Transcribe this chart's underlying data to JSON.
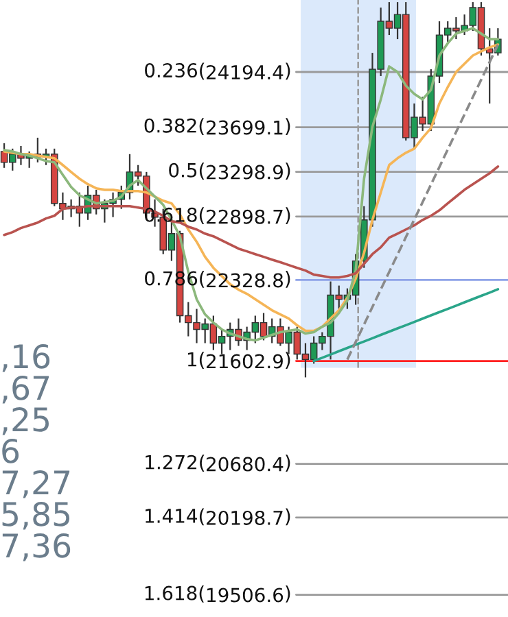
{
  "chart_data": {
    "type": "candlestick",
    "categories": [
      null,
      null,
      null,
      null,
      null,
      null,
      null,
      null,
      null,
      null,
      null,
      null,
      null,
      null,
      null,
      null,
      null,
      null,
      null,
      null,
      null,
      null,
      null,
      null,
      null,
      null,
      null,
      null,
      null,
      null,
      null,
      null,
      null,
      null,
      null,
      null,
      null,
      null,
      null,
      null,
      null,
      null,
      null,
      null,
      null,
      null,
      null,
      null,
      null,
      null,
      null,
      null,
      null,
      null,
      null,
      null,
      null,
      null,
      null,
      null
    ],
    "ylim": [
      19307,
      24840
    ],
    "yticks": [
      24194.4,
      23699.1,
      23298.9,
      22898.7,
      22328.8,
      21602.9,
      20680.4,
      20198.7,
      19506.6
    ],
    "tick_labels": "y",
    "ohlc": [
      [
        23482,
        23556,
        23335,
        23384
      ],
      [
        23384,
        23507,
        23310,
        23458
      ],
      [
        23458,
        23531,
        23360,
        23421
      ],
      [
        23421,
        23482,
        23335,
        23458
      ],
      [
        23458,
        23605,
        23384,
        23433
      ],
      [
        23433,
        23507,
        23360,
        23458
      ],
      [
        23458,
        23507,
        22991,
        23016
      ],
      [
        23016,
        23114,
        22868,
        22967
      ],
      [
        22967,
        23052,
        22893,
        22991
      ],
      [
        22991,
        23114,
        22807,
        22930
      ],
      [
        22930,
        23175,
        22868,
        23089
      ],
      [
        23089,
        23138,
        22917,
        22967
      ],
      [
        22967,
        23052,
        22844,
        23016
      ],
      [
        23016,
        23114,
        22893,
        23052
      ],
      [
        23052,
        23175,
        22967,
        23114
      ],
      [
        23114,
        23458,
        23052,
        23298
      ],
      [
        23298,
        23360,
        23175,
        23261
      ],
      [
        23261,
        23298,
        22868,
        22930
      ],
      [
        22930,
        23052,
        22807,
        22893
      ],
      [
        22893,
        22967,
        22561,
        22598
      ],
      [
        22598,
        22868,
        22500,
        22745
      ],
      [
        22745,
        22770,
        21947,
        22009
      ],
      [
        22009,
        22131,
        21824,
        21947
      ],
      [
        21947,
        22070,
        21763,
        21886
      ],
      [
        21886,
        21984,
        21763,
        21935
      ],
      [
        21935,
        22009,
        21701,
        21763
      ],
      [
        21763,
        21886,
        21665,
        21824
      ],
      [
        21824,
        21947,
        21701,
        21886
      ],
      [
        21886,
        21984,
        21738,
        21788
      ],
      [
        21788,
        21910,
        21701,
        21861
      ],
      [
        21861,
        22009,
        21763,
        21947
      ],
      [
        21947,
        22033,
        21788,
        21824
      ],
      [
        21824,
        21984,
        21763,
        21910
      ],
      [
        21910,
        21984,
        21738,
        21763
      ],
      [
        21763,
        21910,
        21665,
        21861
      ],
      [
        21861,
        21910,
        21616,
        21665
      ],
      [
        21665,
        21763,
        21456,
        21616
      ],
      [
        21616,
        21824,
        21579,
        21763
      ],
      [
        21763,
        21861,
        21701,
        21824
      ],
      [
        21824,
        22316,
        21616,
        22193
      ],
      [
        22193,
        22279,
        22070,
        22156
      ],
      [
        22156,
        22254,
        22070,
        22193
      ],
      [
        22193,
        22561,
        22107,
        22500
      ],
      [
        22500,
        22991,
        22438,
        22868
      ],
      [
        22868,
        24366,
        22807,
        24219
      ],
      [
        24219,
        24772,
        24158,
        24649
      ],
      [
        24649,
        24821,
        24526,
        24587
      ],
      [
        24587,
        24821,
        24489,
        24710
      ],
      [
        24710,
        24821,
        23580,
        23605
      ],
      [
        23605,
        23912,
        23507,
        23789
      ],
      [
        23789,
        23973,
        23666,
        23728
      ],
      [
        23728,
        24219,
        23666,
        24158
      ],
      [
        24158,
        24649,
        24096,
        24526
      ],
      [
        24526,
        24649,
        24465,
        24587
      ],
      [
        24587,
        24686,
        24489,
        24563
      ],
      [
        24563,
        24710,
        24526,
        24612
      ],
      [
        24612,
        24821,
        24563,
        24772
      ],
      [
        24772,
        24821,
        24342,
        24403
      ],
      [
        24403,
        24587,
        23912,
        24366
      ],
      [
        24366,
        24587,
        24342,
        24489
      ]
    ],
    "series": [
      {
        "type": "line",
        "color": "#f5b557",
        "values": [
          23482,
          23470,
          23458,
          23458,
          23445,
          23433,
          23421,
          23360,
          23298,
          23237,
          23188,
          23151,
          23138,
          23138,
          23126,
          23126,
          23126,
          23114,
          23077,
          23040,
          23016,
          22917,
          22782,
          22672,
          22537,
          22438,
          22365,
          22291,
          22242,
          22205,
          22156,
          22107,
          22058,
          22021,
          21984,
          21923,
          21873,
          21873,
          21910,
          21984,
          22058,
          22168,
          22340,
          22573,
          22868,
          23114,
          23360,
          23421,
          23470,
          23507,
          23605,
          23691,
          23912,
          24059,
          24194,
          24268,
          24342,
          24379,
          24415,
          24440
        ]
      },
      {
        "type": "line",
        "color": "#8cb87c",
        "values": [
          23494,
          23482,
          23458,
          23445,
          23421,
          23396,
          23384,
          23273,
          23163,
          23089,
          23052,
          23016,
          23028,
          23040,
          23077,
          23175,
          23224,
          23151,
          23077,
          23003,
          22868,
          22721,
          22402,
          22156,
          22021,
          21947,
          21886,
          21849,
          21824,
          21800,
          21788,
          21812,
          21837,
          21861,
          21873,
          21886,
          21849,
          21861,
          21910,
          21947,
          22033,
          22144,
          22414,
          23237,
          23703,
          23949,
          24244,
          24194,
          24072,
          23998,
          23949,
          24035,
          24342,
          24452,
          24538,
          24563,
          24587,
          24538,
          24489,
          24489
        ]
      },
      {
        "type": "line",
        "color": "#b9534f",
        "values": [
          22733,
          22758,
          22795,
          22819,
          22844,
          22881,
          22905,
          22967,
          22979,
          22979,
          22991,
          22991,
          22991,
          22991,
          22991,
          22991,
          22979,
          22967,
          22942,
          22905,
          22856,
          22844,
          22807,
          22782,
          22745,
          22721,
          22684,
          22647,
          22610,
          22586,
          22561,
          22537,
          22512,
          22488,
          22463,
          22438,
          22414,
          22377,
          22365,
          22352,
          22352,
          22365,
          22389,
          22475,
          22561,
          22623,
          22709,
          22745,
          22782,
          22819,
          22868,
          22905,
          22954,
          23016,
          23077,
          23138,
          23188,
          23237,
          23286,
          23347
        ]
      },
      {
        "type": "line",
        "color": "#2aa58a",
        "values": [
          null,
          null,
          null,
          null,
          null,
          null,
          null,
          null,
          null,
          null,
          null,
          null,
          null,
          null,
          null,
          null,
          null,
          null,
          null,
          null,
          null,
          null,
          null,
          null,
          null,
          null,
          null,
          null,
          null,
          null,
          null,
          null,
          null,
          null,
          null,
          null,
          null,
          21603,
          21632,
          21661,
          21691,
          21720,
          21749,
          21778,
          21807,
          21837,
          21866,
          21895,
          21924,
          21953,
          21983,
          22012,
          22041,
          22070,
          22099,
          22129,
          22158,
          22187,
          22216,
          22246
        ]
      },
      {
        "type": "line",
        "color": "#8a8a8a",
        "line_style": "dashed",
        "values": [
          null,
          null,
          null,
          null,
          null,
          null,
          null,
          null,
          null,
          null,
          null,
          null,
          null,
          null,
          null,
          null,
          null,
          null,
          null,
          null,
          null,
          null,
          null,
          null,
          null,
          null,
          null,
          null,
          null,
          null,
          null,
          null,
          null,
          null,
          null,
          null,
          null,
          null,
          null,
          null,
          null,
          21616,
          21773,
          21930,
          22087,
          22244,
          22401,
          22557,
          22714,
          22871,
          23028,
          23185,
          23342,
          23499,
          23656,
          23813,
          23970,
          24126,
          24283,
          24440
        ]
      }
    ],
    "ref_lines": [
      {
        "axis": "y",
        "value": 24194.4,
        "color": "#9a9a9a"
      },
      {
        "axis": "y",
        "value": 23699.1,
        "color": "#9a9a9a"
      },
      {
        "axis": "y",
        "value": 23298.9,
        "color": "#9a9a9a"
      },
      {
        "axis": "y",
        "value": 22898.7,
        "color": "#9a9a9a"
      },
      {
        "axis": "y",
        "value": 22328.8,
        "color": "#8fa3e8"
      },
      {
        "axis": "y",
        "value": 21602.9,
        "color": "#ff2020"
      },
      {
        "axis": "y",
        "value": 20680.4,
        "color": "#9a9a9a"
      },
      {
        "axis": "y",
        "value": 20198.7,
        "color": "#9a9a9a"
      },
      {
        "axis": "y",
        "value": 19506.6,
        "color": "#9a9a9a"
      }
    ],
    "annotations": [
      ",16",
      ",67",
      ",25",
      "6",
      "7,27",
      "5,85",
      "7,36",
      "0.236(",
      ")",
      "0.382(",
      ")",
      "0.5(",
      ")",
      "0.618(",
      ")",
      "0.786(",
      ")",
      "1(",
      ")",
      "1.272(",
      ")",
      "1.414(",
      ")",
      "1.618(",
      ")"
    ]
  }
}
